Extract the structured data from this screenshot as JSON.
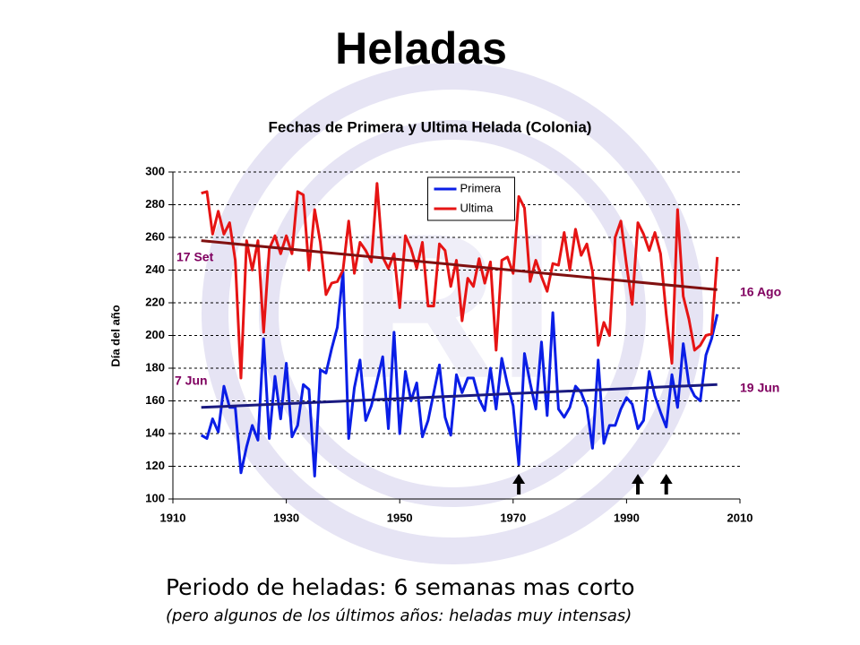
{
  "header": {
    "title": "Heladas"
  },
  "chart_data": {
    "type": "line",
    "title": "Fechas de Primera y Ultima Helada (Colonia)",
    "ylabel": "Día del año",
    "xlim": [
      1910,
      2010
    ],
    "xticks": [
      1910,
      1930,
      1950,
      1970,
      1990,
      2010
    ],
    "ylim": [
      100,
      300
    ],
    "yticks": [
      100,
      120,
      140,
      160,
      180,
      200,
      220,
      240,
      260,
      280,
      300
    ],
    "grid": true,
    "legend": "upper center",
    "x": [
      1915,
      1916,
      1917,
      1918,
      1919,
      1920,
      1921,
      1922,
      1923,
      1924,
      1925,
      1926,
      1927,
      1928,
      1929,
      1930,
      1931,
      1932,
      1933,
      1934,
      1935,
      1936,
      1937,
      1938,
      1939,
      1940,
      1941,
      1942,
      1943,
      1944,
      1945,
      1946,
      1947,
      1948,
      1949,
      1950,
      1951,
      1952,
      1953,
      1954,
      1955,
      1956,
      1957,
      1958,
      1959,
      1960,
      1961,
      1962,
      1963,
      1964,
      1965,
      1966,
      1967,
      1968,
      1969,
      1970,
      1971,
      1972,
      1973,
      1974,
      1975,
      1976,
      1977,
      1978,
      1979,
      1980,
      1981,
      1982,
      1983,
      1984,
      1985,
      1986,
      1987,
      1988,
      1989,
      1990,
      1991,
      1992,
      1993,
      1994,
      1995,
      1996,
      1997,
      1998,
      1999,
      2000,
      2001,
      2002,
      2003,
      2004,
      2005,
      2006
    ],
    "series": [
      {
        "name": "Primera",
        "color": "#0a1ee6",
        "values": [
          139,
          137,
          149,
          141,
          169,
          156,
          156,
          116,
          132,
          145,
          136,
          198,
          137,
          175,
          149,
          183,
          138,
          145,
          170,
          167,
          114,
          179,
          177,
          192,
          205,
          239,
          137,
          168,
          185,
          148,
          157,
          172,
          187,
          143,
          202,
          140,
          178,
          160,
          171,
          138,
          148,
          165,
          182,
          150,
          139,
          176,
          165,
          174,
          174,
          161,
          154,
          180,
          155,
          186,
          170,
          157,
          121,
          189,
          171,
          155,
          196,
          151,
          214,
          155,
          150,
          156,
          169,
          165,
          156,
          131,
          185,
          134,
          145,
          145,
          155,
          162,
          158,
          143,
          148,
          178,
          163,
          153,
          144,
          176,
          156,
          195,
          170,
          163,
          160,
          188,
          198,
          213
        ],
        "trend": {
          "color": "#1a1a80",
          "x": [
            1915,
            2006
          ],
          "values": [
            156,
            170
          ]
        }
      },
      {
        "name": "Ultima",
        "color": "#e61414",
        "values": [
          287,
          288,
          262,
          276,
          262,
          269,
          246,
          174,
          258,
          240,
          258,
          202,
          253,
          261,
          250,
          261,
          250,
          288,
          286,
          240,
          277,
          257,
          225,
          232,
          233,
          240,
          270,
          238,
          257,
          252,
          245,
          293,
          248,
          241,
          250,
          217,
          261,
          253,
          241,
          257,
          218,
          218,
          256,
          252,
          230,
          246,
          209,
          235,
          230,
          247,
          232,
          245,
          191,
          246,
          248,
          238,
          285,
          278,
          233,
          246,
          236,
          227,
          244,
          243,
          263,
          240,
          265,
          249,
          256,
          239,
          194,
          208,
          200,
          260,
          270,
          243,
          219,
          269,
          262,
          252,
          263,
          250,
          213,
          183,
          277,
          224,
          210,
          191,
          194,
          200,
          201,
          248
        ],
        "trend": {
          "color": "#801010",
          "x": [
            1915,
            2006
          ],
          "values": [
            258,
            228
          ]
        }
      }
    ],
    "annotations": [
      {
        "text": "17 Set",
        "color": "#800060"
      },
      {
        "text": "7 Jun",
        "color": "#800060"
      },
      {
        "text": "16 Ago",
        "color": "#800060"
      },
      {
        "text": "19 Jun",
        "color": "#800060"
      }
    ],
    "arrows": [
      1971,
      1992,
      1997
    ]
  },
  "footer": {
    "text": "Periodo de heladas: 6 semanas mas corto",
    "note": "(pero algunos de los últimos años: heladas muy intensas)"
  }
}
